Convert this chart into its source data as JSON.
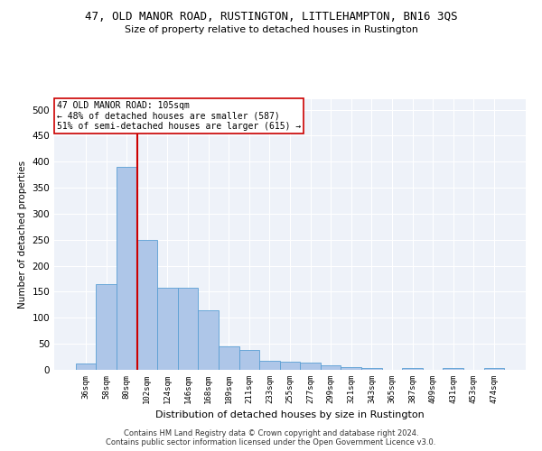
{
  "title": "47, OLD MANOR ROAD, RUSTINGTON, LITTLEHAMPTON, BN16 3QS",
  "subtitle": "Size of property relative to detached houses in Rustington",
  "xlabel": "Distribution of detached houses by size in Rustington",
  "ylabel": "Number of detached properties",
  "categories": [
    "36sqm",
    "58sqm",
    "80sqm",
    "102sqm",
    "124sqm",
    "146sqm",
    "168sqm",
    "189sqm",
    "211sqm",
    "233sqm",
    "255sqm",
    "277sqm",
    "299sqm",
    "321sqm",
    "343sqm",
    "365sqm",
    "387sqm",
    "409sqm",
    "431sqm",
    "453sqm",
    "474sqm"
  ],
  "values": [
    13,
    165,
    390,
    250,
    157,
    157,
    115,
    45,
    38,
    18,
    16,
    14,
    9,
    6,
    3,
    0,
    3,
    0,
    3,
    0,
    3
  ],
  "bar_color": "#aec6e8",
  "bar_edge_color": "#5a9fd4",
  "vline_x_index": 3,
  "vline_color": "#cc0000",
  "annotation_line1": "47 OLD MANOR ROAD: 105sqm",
  "annotation_line2": "← 48% of detached houses are smaller (587)",
  "annotation_line3": "51% of semi-detached houses are larger (615) →",
  "annotation_box_color": "#ffffff",
  "annotation_box_edge": "#cc0000",
  "ylim": [
    0,
    520
  ],
  "yticks": [
    0,
    50,
    100,
    150,
    200,
    250,
    300,
    350,
    400,
    450,
    500
  ],
  "background_color": "#eef2f9",
  "grid_color": "#ffffff",
  "footer1": "Contains HM Land Registry data © Crown copyright and database right 2024.",
  "footer2": "Contains public sector information licensed under the Open Government Licence v3.0."
}
